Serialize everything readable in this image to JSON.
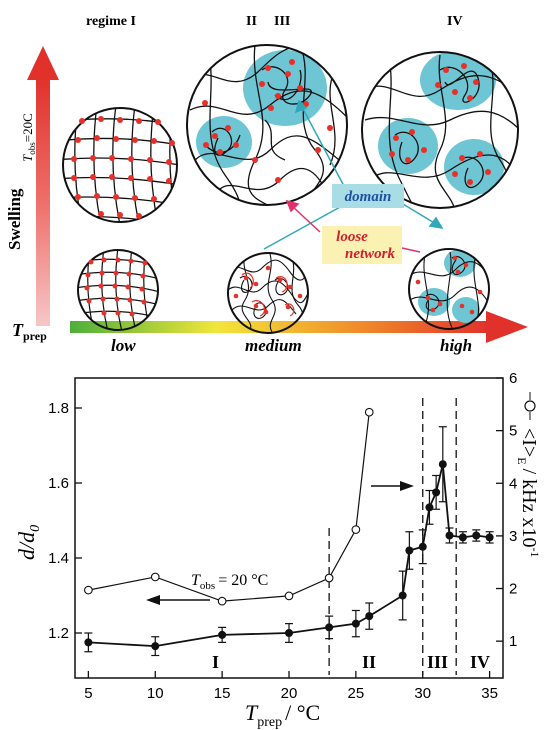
{
  "schematic": {
    "regime_labels": [
      "regime I",
      "II",
      "III",
      "IV"
    ],
    "swelling_label": "Swelling",
    "tobs_label": "T",
    "tobs_sub": "obs",
    "tobs_value": "=20C",
    "tprep_label": "T",
    "tprep_sub": "prep",
    "tprep_levels": [
      "low",
      "medium",
      "high"
    ],
    "domain_label": "domain",
    "loose_network_label_1": "loose",
    "loose_network_label_2": "network",
    "colors": {
      "domain": "#6ec6d4",
      "crosslink": "#e8302a",
      "domain_box": "#a9dde6",
      "loose_box": "#fbf1b3",
      "domain_text": "#1f4fa0",
      "loose_text": "#d0202a",
      "swelling_arrow": "#e0322b",
      "temp_gradient": [
        "#4caf3a",
        "#f2e63a",
        "#f08a2a",
        "#e0322b"
      ]
    },
    "icons": [
      "swelling-arrow-icon",
      "temperature-arrow-icon"
    ]
  },
  "chart_data": {
    "type": "line",
    "xlabel_main": "T",
    "xlabel_sub": "prep",
    "xlabel_unit": "/ °C",
    "ylabel_left_main": "d/d",
    "ylabel_left_sub": "0",
    "ylabel_right_main": "<I>",
    "ylabel_right_sub": "E",
    "ylabel_right_unit": "/ kHz x10",
    "ylabel_right_exp": "-1",
    "xlim": [
      4,
      36
    ],
    "ylim_left": [
      1.08,
      1.88
    ],
    "ylim_right": [
      0.3,
      6.0
    ],
    "x_ticks": [
      5,
      10,
      15,
      20,
      25,
      30,
      35
    ],
    "y_left_ticks": [
      "1.2",
      "1.4",
      "1.6",
      "1.8"
    ],
    "y_left_tick_values": [
      1.2,
      1.4,
      1.6,
      1.8
    ],
    "y_right_ticks": [
      "1",
      "2",
      "3",
      "4",
      "5",
      "6"
    ],
    "y_right_tick_values": [
      1,
      2,
      3,
      4,
      5,
      6
    ],
    "annotation_tobs": "T",
    "annotation_tobs_sub": "obs",
    "annotation_tobs_value": "= 20 °C",
    "regime_labels": [
      "I",
      "II",
      "III",
      "IV"
    ],
    "regime_boundaries": [
      23,
      30,
      32.5
    ],
    "series": [
      {
        "axis": "left",
        "marker": "filled",
        "x": [
          5,
          10,
          15,
          20,
          23,
          25,
          26,
          28.5,
          29,
          30,
          30.5,
          31,
          31.5,
          32,
          33,
          34,
          35
        ],
        "y": [
          1.175,
          1.165,
          1.195,
          1.2,
          1.215,
          1.225,
          1.245,
          1.3,
          1.42,
          1.43,
          1.535,
          1.575,
          1.65,
          1.46,
          1.455,
          1.46,
          1.455
        ],
        "err": [
          0.025,
          0.025,
          0.02,
          0.025,
          0.03,
          0.035,
          0.035,
          0.065,
          0.05,
          0.045,
          0.045,
          0.045,
          0.1,
          0.02,
          0.015,
          0.015,
          0.015
        ]
      },
      {
        "axis": "right",
        "marker": "open",
        "x": [
          5,
          10,
          15,
          20,
          23,
          25,
          26
        ],
        "y": [
          1.97,
          2.22,
          1.76,
          1.86,
          2.2,
          3.12,
          5.35
        ]
      }
    ]
  }
}
